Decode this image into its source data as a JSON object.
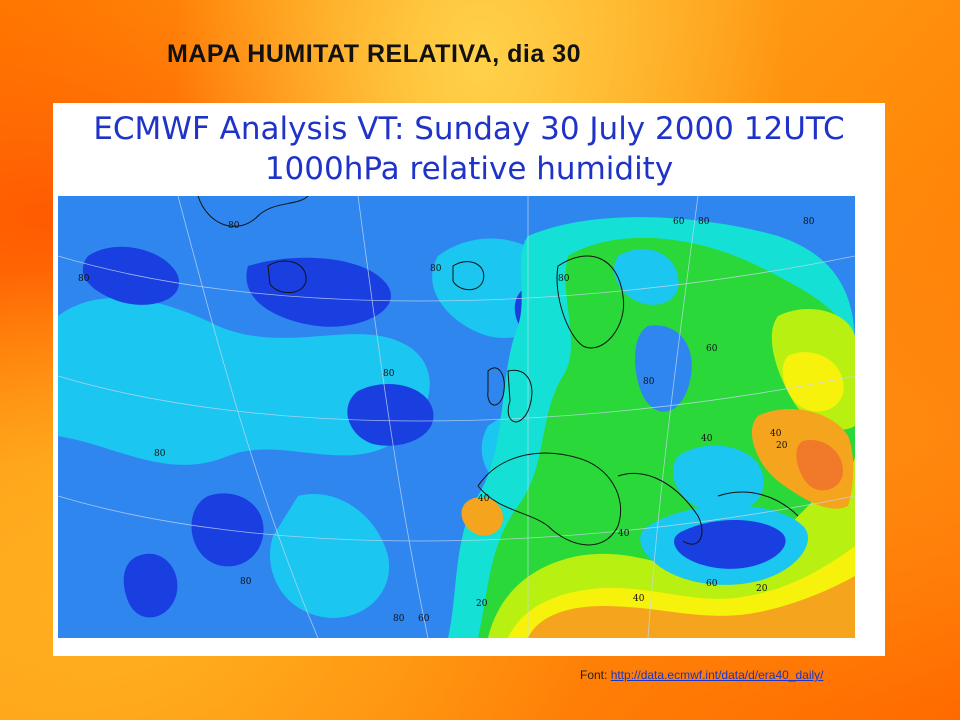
{
  "slide": {
    "title": "MAPA HUMITAT RELATIVA, dia 30"
  },
  "map": {
    "header_line1": "ECMWF  Analysis VT: Sunday 30 July 2000 12UTC",
    "header_line2": "1000hPa  relative humidity",
    "contour_labels": [
      "80",
      "80",
      "80",
      "80",
      "80",
      "80",
      "80",
      "80",
      "80",
      "80",
      "80",
      "60",
      "60",
      "60",
      "60",
      "40",
      "40",
      "40",
      "40",
      "40",
      "20",
      "20",
      "20"
    ],
    "colors": {
      "very_humid": "#1a3fe0",
      "humid": "#2f86ef",
      "moist": "#1bc6f0",
      "mid": "#14e0d6",
      "green": "#2ad83a",
      "yellow_green": "#b8f012",
      "yellow": "#f6f20c",
      "orange": "#f5a51d",
      "dry": "#f07a2a"
    }
  },
  "source": {
    "prefix": "Font: ",
    "url": "http://data.ecmwf.int/data/d/era40_daily/"
  }
}
